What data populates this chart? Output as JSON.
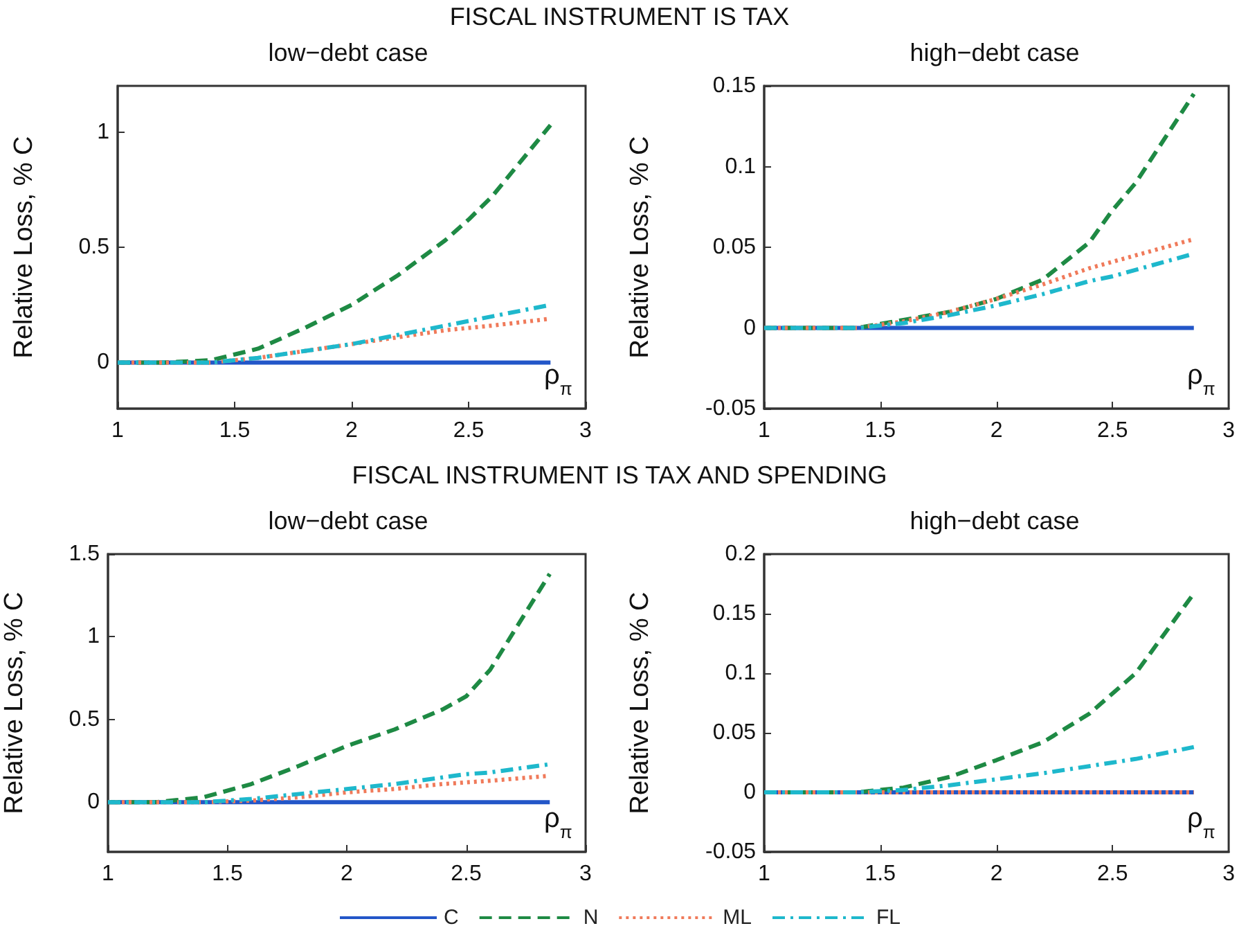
{
  "chart_data": [
    {
      "type": "line",
      "title": "low−debt case",
      "annotations": [
        "FISCAL INSTRUMENT IS TAX"
      ],
      "xlabel": "ρ$_{π}$",
      "ylabel": "Relative Loss, % C",
      "x": [
        1,
        1.2,
        1.4,
        1.6,
        1.8,
        2,
        2.2,
        2.4,
        2.5,
        2.6,
        2.85
      ],
      "xlim": [
        1,
        3
      ],
      "xticks": [
        1,
        1.5,
        2,
        2.5,
        3
      ],
      "ylim": [
        -0.2,
        1.2
      ],
      "yticks": [
        0,
        0.5,
        1
      ],
      "grid": false,
      "series": [
        {
          "color": "#2356c8",
          "line_style": "solid",
          "values": [
            0,
            0,
            0,
            0,
            0,
            0,
            0,
            0,
            0,
            0,
            0
          ]
        },
        {
          "color": "#1e8a44",
          "line_style": "dashed",
          "values": [
            0,
            0,
            0.01,
            0.06,
            0.15,
            0.25,
            0.38,
            0.53,
            0.62,
            0.72,
            1.03
          ]
        },
        {
          "color": "#f07a5a",
          "line_style": "dotted",
          "values": [
            0,
            0,
            0,
            0.02,
            0.05,
            0.08,
            0.11,
            0.14,
            0.15,
            0.16,
            0.19
          ]
        },
        {
          "color": "#1eb8cc",
          "line_style": "dashdot",
          "values": [
            0,
            0,
            0,
            0.02,
            0.05,
            0.08,
            0.12,
            0.16,
            0.18,
            0.2,
            0.25
          ]
        }
      ]
    },
    {
      "type": "line",
      "title": "high−debt case",
      "xlabel": "ρ$_{π}$",
      "ylabel": "Relative Loss, % C",
      "x": [
        1,
        1.2,
        1.4,
        1.6,
        1.8,
        2,
        2.2,
        2.4,
        2.5,
        2.6,
        2.85
      ],
      "xlim": [
        1,
        3
      ],
      "xticks": [
        1,
        1.5,
        2,
        2.5,
        3
      ],
      "ylim": [
        -0.05,
        0.15
      ],
      "yticks": [
        -0.05,
        0,
        0.05,
        0.1,
        0.15
      ],
      "grid": false,
      "series": [
        {
          "color": "#2356c8",
          "line_style": "solid",
          "values": [
            0,
            0,
            0,
            0,
            0,
            0,
            0,
            0,
            0,
            0,
            0
          ]
        },
        {
          "color": "#1e8a44",
          "line_style": "dashed",
          "values": [
            0,
            0,
            0,
            0.005,
            0.01,
            0.018,
            0.03,
            0.053,
            0.073,
            0.09,
            0.145
          ]
        },
        {
          "color": "#f07a5a",
          "line_style": "dotted",
          "values": [
            0,
            0,
            0,
            0.004,
            0.01,
            0.018,
            0.027,
            0.037,
            0.041,
            0.045,
            0.055
          ]
        },
        {
          "color": "#1eb8cc",
          "line_style": "dashdot",
          "values": [
            0,
            0,
            0,
            0.003,
            0.008,
            0.014,
            0.021,
            0.029,
            0.032,
            0.036,
            0.046
          ]
        }
      ]
    },
    {
      "type": "line",
      "title": "low−debt case",
      "annotations": [
        "FISCAL INSTRUMENT IS TAX AND SPENDING"
      ],
      "xlabel": "ρ$_{π}$",
      "ylabel": "Relative Loss, % C",
      "x": [
        1,
        1.2,
        1.4,
        1.6,
        1.8,
        2,
        2.2,
        2.4,
        2.5,
        2.6,
        2.85
      ],
      "xlim": [
        1,
        3
      ],
      "xticks": [
        1,
        1.5,
        2,
        2.5,
        3
      ],
      "ylim": [
        -0.3,
        1.5
      ],
      "yticks": [
        0,
        0.5,
        1,
        1.5
      ],
      "grid": false,
      "legend": "bottom",
      "series": [
        {
          "name": "C",
          "color": "#2356c8",
          "line_style": "solid",
          "values": [
            0,
            0,
            0,
            0,
            0,
            0,
            0,
            0,
            0,
            0,
            0
          ]
        },
        {
          "name": "N",
          "color": "#1e8a44",
          "line_style": "dashed",
          "values": [
            0,
            0,
            0.03,
            0.11,
            0.22,
            0.34,
            0.44,
            0.56,
            0.64,
            0.8,
            1.38
          ]
        },
        {
          "name": "ML",
          "color": "#f07a5a",
          "line_style": "dotted",
          "values": [
            0,
            0,
            0,
            0.01,
            0.03,
            0.06,
            0.08,
            0.11,
            0.12,
            0.13,
            0.16
          ]
        },
        {
          "name": "FL",
          "color": "#1eb8cc",
          "line_style": "dashdot",
          "values": [
            0,
            0,
            0,
            0.02,
            0.05,
            0.08,
            0.11,
            0.15,
            0.17,
            0.18,
            0.23
          ]
        }
      ]
    },
    {
      "type": "line",
      "title": "high−debt case",
      "xlabel": "ρ$_{π}$",
      "ylabel": "Relative Loss, % C",
      "x": [
        1,
        1.2,
        1.4,
        1.6,
        1.8,
        2,
        2.2,
        2.4,
        2.5,
        2.6,
        2.85
      ],
      "xlim": [
        1,
        3
      ],
      "xticks": [
        1,
        1.5,
        2,
        2.5,
        3
      ],
      "ylim": [
        -0.05,
        0.2
      ],
      "yticks": [
        -0.05,
        0,
        0.05,
        0.1,
        0.15,
        0.2
      ],
      "grid": false,
      "series": [
        {
          "color": "#2356c8",
          "line_style": "solid",
          "values": [
            0,
            0,
            0,
            0,
            0,
            0,
            0,
            0,
            0,
            0,
            0
          ]
        },
        {
          "color": "#1e8a44",
          "line_style": "dashed",
          "values": [
            0,
            0,
            0,
            0.004,
            0.013,
            0.027,
            0.042,
            0.066,
            0.083,
            0.1,
            0.167
          ]
        },
        {
          "color": "#f07a5a",
          "line_style": "dotted",
          "values": [
            0,
            0,
            0,
            0,
            0,
            0,
            0,
            0,
            0,
            0,
            0
          ]
        },
        {
          "color": "#1eb8cc",
          "line_style": "dashdot",
          "values": [
            0,
            0,
            0,
            0.002,
            0.006,
            0.011,
            0.016,
            0.022,
            0.025,
            0.028,
            0.038
          ]
        }
      ]
    }
  ]
}
